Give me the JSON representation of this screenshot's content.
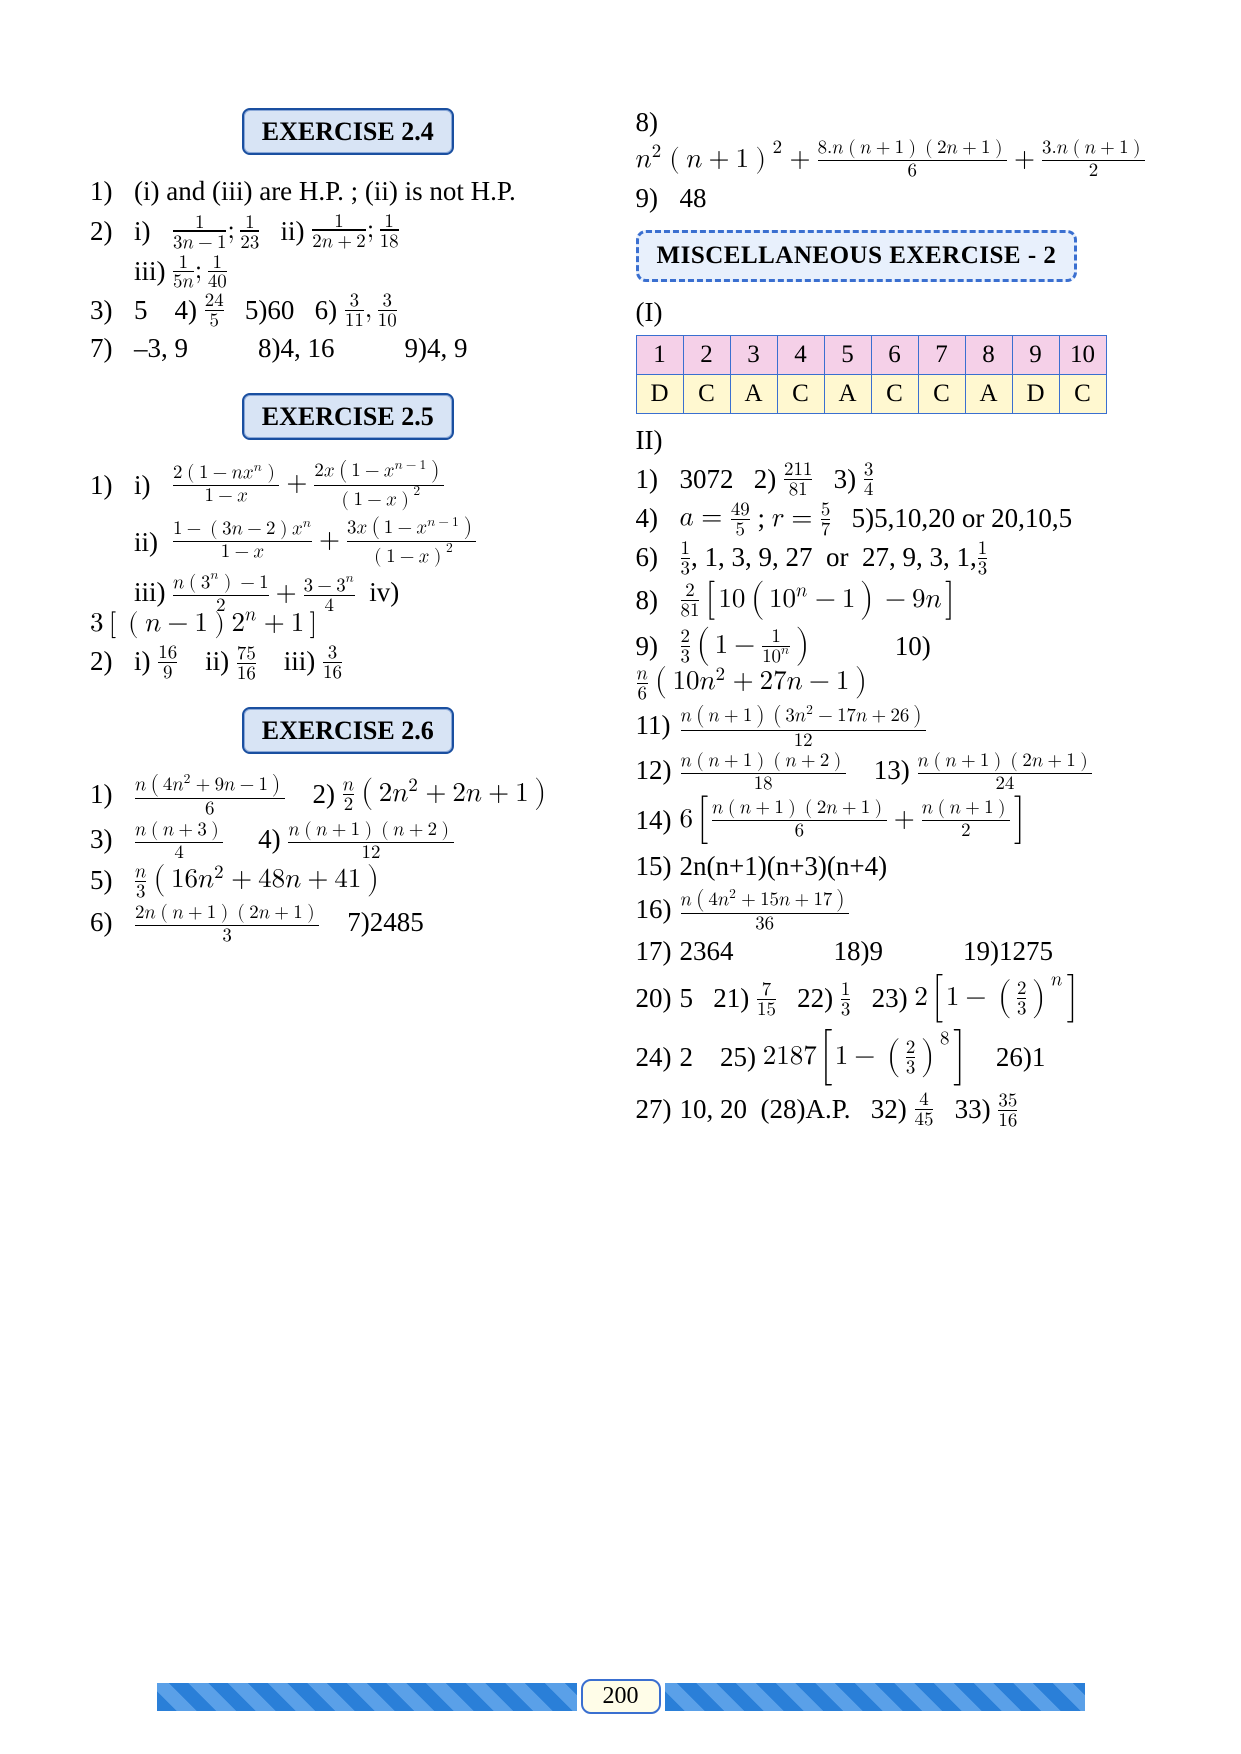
{
  "page_number": "200",
  "headings": {
    "ex24": "EXERCISE 2.4",
    "ex25": "EXERCISE 2.5",
    "ex26": "EXERCISE 2.6",
    "misc": "MISCELLANEOUS EXERCISE  - 2"
  },
  "left": {
    "ex24": {
      "q1": "(i) and (iii) are H.P. ;  (ii) is not H.P.",
      "q3": "5",
      "q4_num": "24",
      "q4_den": "5",
      "q5": "60",
      "q7": "–3, 9",
      "q8": "4, 16",
      "q9": "4, 9"
    },
    "ex25_2": {
      "i_num": "16",
      "i_den": "9",
      "ii_num": "75",
      "ii_den": "16",
      "iii_num": "3",
      "iii_den": "16"
    },
    "ex26_7": "2485"
  },
  "right": {
    "q9": "48",
    "part1_label": "(I)",
    "table_hdr": [
      "1",
      "2",
      "3",
      "4",
      "5",
      "6",
      "7",
      "8",
      "9",
      "10"
    ],
    "table_ans": [
      "D",
      "C",
      "A",
      "C",
      "A",
      "C",
      "C",
      "A",
      "D",
      "C"
    ],
    "part2_label": "II)",
    "II_1": "3072",
    "II_5": "5,10,20   or   20,10,5",
    "II_15": "2n(n+1)(n+3)(n+4)",
    "II_17": "2364",
    "II_18": "9",
    "II_19": "1275",
    "II_20": "5",
    "II_24": "2",
    "II_26": "1",
    "II_27": "10, 20",
    "II_28": "A.P."
  }
}
